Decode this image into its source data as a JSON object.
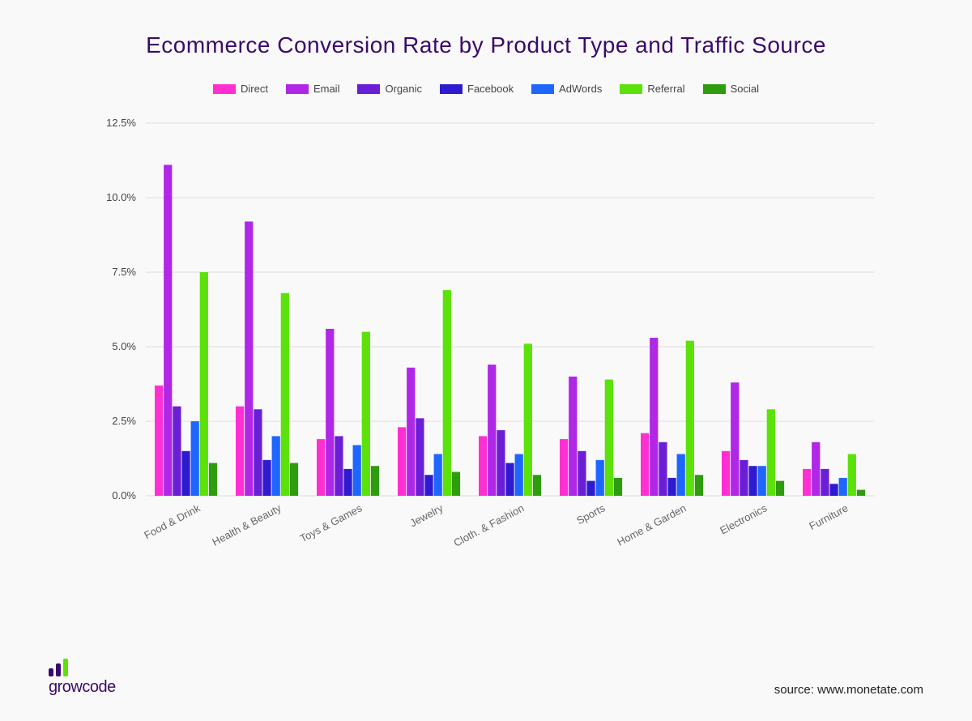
{
  "title": "Ecommerce Conversion Rate by Product Type and Traffic Source",
  "logo_text": "growcode",
  "source_text": "source: www.monetate.com",
  "chart": {
    "type": "grouped-bar",
    "background_color": "#f9f9fa",
    "grid_color": "#dddddd",
    "text_color": "#444444",
    "title_color": "#3a0a6b",
    "title_fontsize": 28,
    "label_fontsize": 13,
    "ylim": [
      0,
      12.5
    ],
    "ytick_step": 2.5,
    "yticks": [
      "0.0%",
      "2.5%",
      "5.0%",
      "7.5%",
      "10.0%",
      "12.5%"
    ],
    "bar_width_ratio": 0.11,
    "group_gap_ratio": 0.22,
    "categories": [
      "Food & Drink",
      "Health & Beauty",
      "Toys & Games",
      "Jewelry",
      "Cloth. & Fashion",
      "Sports",
      "Home & Garden",
      "Electronics",
      "Furniture"
    ],
    "series": [
      {
        "label": "Direct",
        "color": "#ff2fd1",
        "values": [
          3.7,
          3.0,
          1.9,
          2.3,
          2.0,
          1.9,
          2.1,
          1.5,
          0.9
        ]
      },
      {
        "label": "Email",
        "color": "#b027e6",
        "values": [
          11.1,
          9.2,
          5.6,
          4.3,
          4.4,
          4.0,
          5.3,
          3.8,
          1.8
        ]
      },
      {
        "label": "Organic",
        "color": "#6a1ed6",
        "values": [
          3.0,
          2.9,
          2.0,
          2.6,
          2.2,
          1.5,
          1.8,
          1.2,
          0.9
        ]
      },
      {
        "label": "Facebook",
        "color": "#2f1bcf",
        "values": [
          1.5,
          1.2,
          0.9,
          0.7,
          1.1,
          0.5,
          0.6,
          1.0,
          0.4
        ]
      },
      {
        "label": "AdWords",
        "color": "#1f66ff",
        "values": [
          2.5,
          2.0,
          1.7,
          1.4,
          1.4,
          1.2,
          1.4,
          1.0,
          0.6
        ]
      },
      {
        "label": "Referral",
        "color": "#5ce20a",
        "values": [
          7.5,
          6.8,
          5.5,
          6.9,
          5.1,
          3.9,
          5.2,
          2.9,
          1.4
        ]
      },
      {
        "label": "Social",
        "color": "#2f9b0e",
        "values": [
          1.1,
          1.1,
          1.0,
          0.8,
          0.7,
          0.6,
          0.7,
          0.5,
          0.2
        ]
      }
    ]
  }
}
